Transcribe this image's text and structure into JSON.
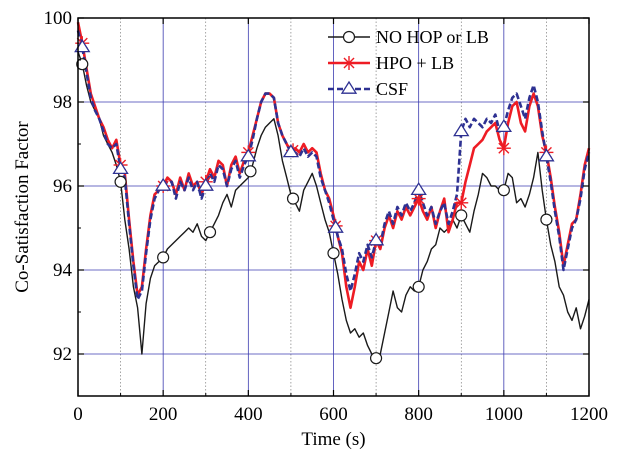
{
  "chart_data": {
    "type": "line",
    "xlabel": "Time (s)",
    "ylabel": "Co-Satisfaction Factor",
    "xlim": [
      0,
      1200
    ],
    "ylim": [
      91,
      100
    ],
    "xticks": [
      0,
      200,
      400,
      600,
      800,
      1000,
      1200
    ],
    "yticks": [
      92,
      94,
      96,
      98,
      100
    ],
    "grid": true,
    "legend_position": "top-right",
    "colors": {
      "NO HOP or LB": "#1a1a1a",
      "HPO + LB": "#ee1c24",
      "CSF": "#2e3192"
    },
    "series": [
      {
        "name": "NO HOP or LB",
        "marker": "circle",
        "line": "solid",
        "x": [
          0,
          10,
          20,
          30,
          40,
          50,
          60,
          70,
          80,
          90,
          100,
          110,
          120,
          130,
          140,
          150,
          160,
          170,
          180,
          190,
          200,
          210,
          220,
          230,
          240,
          250,
          260,
          270,
          280,
          290,
          300,
          310,
          320,
          330,
          340,
          350,
          360,
          370,
          380,
          390,
          400,
          410,
          420,
          430,
          440,
          450,
          460,
          470,
          480,
          490,
          500,
          510,
          520,
          530,
          540,
          550,
          560,
          570,
          580,
          590,
          600,
          610,
          620,
          630,
          640,
          650,
          660,
          670,
          680,
          690,
          700,
          710,
          720,
          730,
          740,
          750,
          760,
          770,
          780,
          790,
          800,
          810,
          820,
          830,
          840,
          850,
          860,
          870,
          880,
          890,
          900,
          910,
          920,
          930,
          940,
          950,
          960,
          970,
          980,
          990,
          1000,
          1010,
          1020,
          1030,
          1040,
          1050,
          1060,
          1070,
          1080,
          1090,
          1100,
          1110,
          1120,
          1130,
          1140,
          1150,
          1160,
          1170,
          1180,
          1190,
          1200
        ],
        "values": [
          99.2,
          98.9,
          98.4,
          98.0,
          97.8,
          97.6,
          97.2,
          97.0,
          96.8,
          96.5,
          96.1,
          95.2,
          94.5,
          93.6,
          93.1,
          92.0,
          93.2,
          93.8,
          94.1,
          94.2,
          94.3,
          94.5,
          94.6,
          94.7,
          94.8,
          94.9,
          95.0,
          94.9,
          95.1,
          94.8,
          94.7,
          94.9,
          95.1,
          95.3,
          95.6,
          95.8,
          95.5,
          95.9,
          96.0,
          96.1,
          96.2,
          96.5,
          96.9,
          97.2,
          97.4,
          97.5,
          97.6,
          97.2,
          96.6,
          96.2,
          95.8,
          95.6,
          95.4,
          95.9,
          96.1,
          96.3,
          96.0,
          95.6,
          95.2,
          94.9,
          94.4,
          93.9,
          93.3,
          92.8,
          92.5,
          92.6,
          92.4,
          92.5,
          92.2,
          92.0,
          91.9,
          92.0,
          92.5,
          93.0,
          93.5,
          93.1,
          93.0,
          93.4,
          93.6,
          93.5,
          93.6,
          94.0,
          94.2,
          94.5,
          94.6,
          95.0,
          94.9,
          95.0,
          95.2,
          95.0,
          95.3,
          95.1,
          94.9,
          95.4,
          95.8,
          96.3,
          96.2,
          96.0,
          96.0,
          95.9,
          95.9,
          96.3,
          96.2,
          95.6,
          95.7,
          95.5,
          95.8,
          96.2,
          96.8,
          95.9,
          95.2,
          94.6,
          94.2,
          93.6,
          93.4,
          93.0,
          92.8,
          93.1,
          92.6,
          92.9,
          93.3
        ],
        "marker_x": [
          10,
          100,
          200,
          310,
          405,
          505,
          600,
          700,
          800,
          900,
          1000,
          1100
        ]
      },
      {
        "name": "HPO + LB",
        "marker": "asterisk",
        "line": "solid",
        "x": [
          0,
          10,
          20,
          30,
          40,
          50,
          60,
          70,
          80,
          90,
          100,
          110,
          120,
          130,
          140,
          150,
          160,
          170,
          180,
          190,
          200,
          210,
          220,
          230,
          240,
          250,
          260,
          270,
          280,
          290,
          300,
          310,
          320,
          330,
          340,
          350,
          360,
          370,
          380,
          390,
          400,
          410,
          420,
          430,
          440,
          450,
          460,
          470,
          480,
          490,
          500,
          510,
          520,
          530,
          540,
          550,
          560,
          570,
          580,
          590,
          600,
          610,
          620,
          630,
          640,
          650,
          660,
          670,
          680,
          690,
          700,
          710,
          720,
          730,
          740,
          750,
          760,
          770,
          780,
          790,
          800,
          810,
          820,
          830,
          840,
          850,
          860,
          870,
          880,
          890,
          900,
          910,
          920,
          930,
          940,
          950,
          960,
          970,
          980,
          990,
          1000,
          1010,
          1020,
          1030,
          1040,
          1050,
          1060,
          1070,
          1080,
          1090,
          1100,
          1110,
          1120,
          1130,
          1140,
          1150,
          1160,
          1170,
          1180,
          1190,
          1200
        ],
        "values": [
          99.9,
          99.4,
          98.8,
          98.2,
          97.9,
          97.6,
          97.4,
          97.1,
          96.9,
          97.1,
          96.5,
          96.3,
          95.2,
          94.2,
          93.4,
          93.6,
          94.5,
          95.3,
          95.8,
          95.9,
          96.0,
          96.2,
          96.1,
          95.8,
          96.2,
          95.9,
          96.3,
          96.0,
          96.1,
          95.8,
          96.1,
          96.4,
          96.2,
          96.6,
          96.5,
          96.0,
          96.5,
          96.7,
          96.3,
          96.6,
          96.8,
          97.2,
          97.6,
          98.0,
          98.2,
          98.2,
          98.1,
          97.5,
          97.2,
          97.0,
          96.8,
          96.9,
          96.8,
          97.0,
          96.8,
          96.9,
          96.8,
          96.3,
          95.9,
          95.7,
          95.3,
          94.8,
          94.4,
          93.6,
          93.1,
          93.6,
          94.2,
          94.0,
          94.5,
          94.1,
          94.7,
          94.5,
          95.0,
          95.3,
          95.0,
          95.4,
          95.2,
          95.5,
          95.3,
          95.5,
          95.7,
          95.4,
          95.2,
          95.5,
          95.0,
          95.4,
          95.7,
          94.9,
          95.2,
          95.6,
          95.6,
          96.1,
          96.5,
          96.9,
          97.0,
          97.1,
          97.3,
          97.4,
          97.5,
          97.1,
          96.9,
          97.5,
          97.9,
          98.0,
          97.5,
          97.3,
          97.9,
          98.2,
          97.9,
          97.2,
          96.8,
          96.2,
          95.5,
          94.9,
          94.1,
          94.6,
          95.1,
          95.2,
          95.8,
          96.5,
          96.9
        ],
        "marker_x": [
          10,
          100,
          200,
          300,
          400,
          505,
          605,
          700,
          800,
          900,
          1000,
          1100
        ]
      },
      {
        "name": "CSF",
        "marker": "triangle",
        "line": "dashed",
        "x": [
          0,
          10,
          20,
          30,
          40,
          50,
          60,
          70,
          80,
          90,
          100,
          110,
          120,
          130,
          140,
          150,
          160,
          170,
          180,
          190,
          200,
          210,
          220,
          230,
          240,
          250,
          260,
          270,
          280,
          290,
          300,
          310,
          320,
          330,
          340,
          350,
          360,
          370,
          380,
          390,
          400,
          410,
          420,
          430,
          440,
          450,
          460,
          470,
          480,
          490,
          500,
          510,
          520,
          530,
          540,
          550,
          560,
          570,
          580,
          590,
          600,
          610,
          620,
          630,
          640,
          650,
          660,
          670,
          680,
          690,
          700,
          710,
          720,
          730,
          740,
          750,
          760,
          770,
          780,
          790,
          800,
          810,
          820,
          830,
          840,
          850,
          860,
          870,
          880,
          890,
          900,
          910,
          920,
          930,
          940,
          950,
          960,
          970,
          980,
          990,
          1000,
          1010,
          1020,
          1030,
          1040,
          1050,
          1060,
          1070,
          1080,
          1090,
          1100,
          1110,
          1120,
          1130,
          1140,
          1150,
          1160,
          1170,
          1180,
          1190,
          1200
        ],
        "values": [
          99.7,
          99.3,
          98.7,
          98.1,
          97.8,
          97.6,
          97.3,
          97.0,
          96.9,
          97.0,
          96.4,
          96.2,
          95.1,
          94.1,
          93.3,
          93.5,
          94.4,
          95.2,
          95.7,
          95.9,
          96.0,
          96.1,
          96.1,
          95.7,
          96.1,
          95.9,
          96.2,
          95.9,
          96.1,
          95.7,
          96.0,
          96.3,
          96.1,
          96.5,
          96.4,
          96.0,
          96.4,
          96.6,
          96.2,
          96.5,
          96.7,
          97.1,
          97.6,
          98.0,
          98.2,
          98.2,
          98.1,
          97.5,
          97.2,
          97.0,
          96.8,
          96.8,
          96.7,
          96.9,
          96.7,
          96.8,
          96.7,
          96.2,
          95.9,
          95.6,
          95.2,
          94.8,
          94.5,
          93.9,
          93.5,
          93.9,
          94.4,
          94.2,
          94.6,
          94.3,
          94.7,
          94.6,
          95.1,
          95.4,
          95.1,
          95.5,
          95.3,
          95.6,
          95.4,
          95.6,
          95.9,
          95.6,
          95.3,
          95.5,
          95.1,
          95.4,
          95.6,
          95.1,
          95.4,
          95.8,
          97.3,
          97.6,
          97.4,
          97.6,
          97.5,
          97.4,
          97.6,
          97.5,
          97.7,
          97.3,
          97.4,
          97.8,
          98.1,
          98.2,
          97.9,
          97.6,
          98.1,
          98.4,
          98.0,
          97.3,
          96.7,
          96.1,
          95.4,
          94.8,
          94.0,
          94.5,
          95.0,
          95.2,
          95.7,
          96.4,
          96.8
        ],
        "marker_x": [
          10,
          100,
          200,
          300,
          400,
          500,
          605,
          700,
          800,
          900,
          1000,
          1100
        ]
      }
    ]
  }
}
